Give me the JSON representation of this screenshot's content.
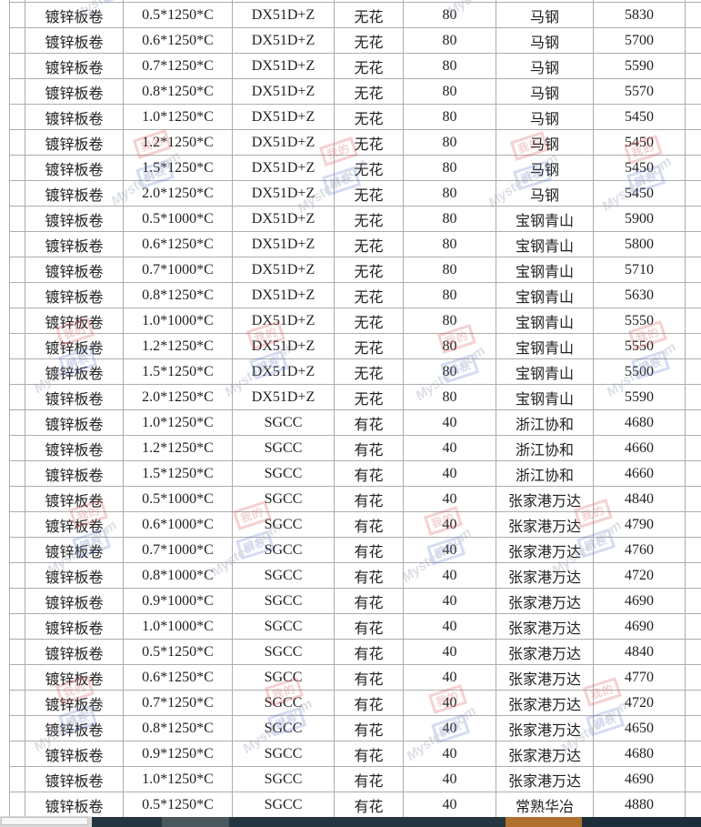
{
  "table": {
    "column_order": [
      "product",
      "spec",
      "grade",
      "spangle",
      "zinc_coating",
      "mill",
      "price"
    ],
    "rows": [
      [
        "镀锌板卷",
        "0.5*1250*C",
        "DX51D+Z",
        "无花",
        "80",
        "马钢",
        "5830"
      ],
      [
        "镀锌板卷",
        "0.6*1250*C",
        "DX51D+Z",
        "无花",
        "80",
        "马钢",
        "5700"
      ],
      [
        "镀锌板卷",
        "0.7*1250*C",
        "DX51D+Z",
        "无花",
        "80",
        "马钢",
        "5590"
      ],
      [
        "镀锌板卷",
        "0.8*1250*C",
        "DX51D+Z",
        "无花",
        "80",
        "马钢",
        "5570"
      ],
      [
        "镀锌板卷",
        "1.0*1250*C",
        "DX51D+Z",
        "无花",
        "80",
        "马钢",
        "5450"
      ],
      [
        "镀锌板卷",
        "1.2*1250*C",
        "DX51D+Z",
        "无花",
        "80",
        "马钢",
        "5450"
      ],
      [
        "镀锌板卷",
        "1.5*1250*C",
        "DX51D+Z",
        "无花",
        "80",
        "马钢",
        "5450"
      ],
      [
        "镀锌板卷",
        "2.0*1250*C",
        "DX51D+Z",
        "无花",
        "80",
        "马钢",
        "5450"
      ],
      [
        "镀锌板卷",
        "0.5*1000*C",
        "DX51D+Z",
        "无花",
        "80",
        "宝钢青山",
        "5900"
      ],
      [
        "镀锌板卷",
        "0.6*1250*C",
        "DX51D+Z",
        "无花",
        "80",
        "宝钢青山",
        "5800"
      ],
      [
        "镀锌板卷",
        "0.7*1000*C",
        "DX51D+Z",
        "无花",
        "80",
        "宝钢青山",
        "5710"
      ],
      [
        "镀锌板卷",
        "0.8*1250*C",
        "DX51D+Z",
        "无花",
        "80",
        "宝钢青山",
        "5630"
      ],
      [
        "镀锌板卷",
        "1.0*1000*C",
        "DX51D+Z",
        "无花",
        "80",
        "宝钢青山",
        "5550"
      ],
      [
        "镀锌板卷",
        "1.2*1250*C",
        "DX51D+Z",
        "无花",
        "80",
        "宝钢青山",
        "5550"
      ],
      [
        "镀锌板卷",
        "1.5*1250*C",
        "DX51D+Z",
        "无花",
        "80",
        "宝钢青山",
        "5500"
      ],
      [
        "镀锌板卷",
        "2.0*1250*C",
        "DX51D+Z",
        "无花",
        "80",
        "宝钢青山",
        "5590"
      ],
      [
        "镀锌板卷",
        "1.0*1250*C",
        "SGCC",
        "有花",
        "40",
        "浙江协和",
        "4680"
      ],
      [
        "镀锌板卷",
        "1.2*1250*C",
        "SGCC",
        "有花",
        "40",
        "浙江协和",
        "4660"
      ],
      [
        "镀锌板卷",
        "1.5*1250*C",
        "SGCC",
        "有花",
        "40",
        "浙江协和",
        "4660"
      ],
      [
        "镀锌板卷",
        "0.5*1000*C",
        "SGCC",
        "有花",
        "40",
        "张家港万达",
        "4840"
      ],
      [
        "镀锌板卷",
        "0.6*1000*C",
        "SGCC",
        "有花",
        "40",
        "张家港万达",
        "4790"
      ],
      [
        "镀锌板卷",
        "0.7*1000*C",
        "SGCC",
        "有花",
        "40",
        "张家港万达",
        "4760"
      ],
      [
        "镀锌板卷",
        "0.8*1000*C",
        "SGCC",
        "有花",
        "40",
        "张家港万达",
        "4720"
      ],
      [
        "镀锌板卷",
        "0.9*1000*C",
        "SGCC",
        "有花",
        "40",
        "张家港万达",
        "4690"
      ],
      [
        "镀锌板卷",
        "1.0*1000*C",
        "SGCC",
        "有花",
        "40",
        "张家港万达",
        "4690"
      ],
      [
        "镀锌板卷",
        "0.5*1250*C",
        "SGCC",
        "有花",
        "40",
        "张家港万达",
        "4840"
      ],
      [
        "镀锌板卷",
        "0.6*1250*C",
        "SGCC",
        "有花",
        "40",
        "张家港万达",
        "4770"
      ],
      [
        "镀锌板卷",
        "0.7*1250*C",
        "SGCC",
        "有花",
        "40",
        "张家港万达",
        "4720"
      ],
      [
        "镀锌板卷",
        "0.8*1250*C",
        "SGCC",
        "有花",
        "40",
        "张家港万达",
        "4650"
      ],
      [
        "镀锌板卷",
        "0.9*1250*C",
        "SGCC",
        "有花",
        "40",
        "张家港万达",
        "4680"
      ],
      [
        "镀锌板卷",
        "1.0*1250*C",
        "SGCC",
        "有花",
        "40",
        "张家港万达",
        "4690"
      ],
      [
        "镀锌板卷",
        "0.5*1250*C",
        "SGCC",
        "有花",
        "40",
        "常熟华冶",
        "4880"
      ]
    ]
  },
  "watermark": {
    "text": "Mysteel.com",
    "logo_red": "我的",
    "logo_blue": "钢铁"
  },
  "colors": {
    "table_border": "#adadad",
    "table_text": "#1f1f1f",
    "watermark_red": "#d33e3e",
    "watermark_blue": "#3e60c8",
    "watermark_text": "#919caf",
    "bar_dark_teal": "#243640",
    "bar_slate": "#4a585d",
    "bar_orange": "#b0702e",
    "bar_navy": "#1e2d3a",
    "scrollbar_track": "#d9d9d9",
    "scrollbar_thumb": "#f6f6f6"
  }
}
